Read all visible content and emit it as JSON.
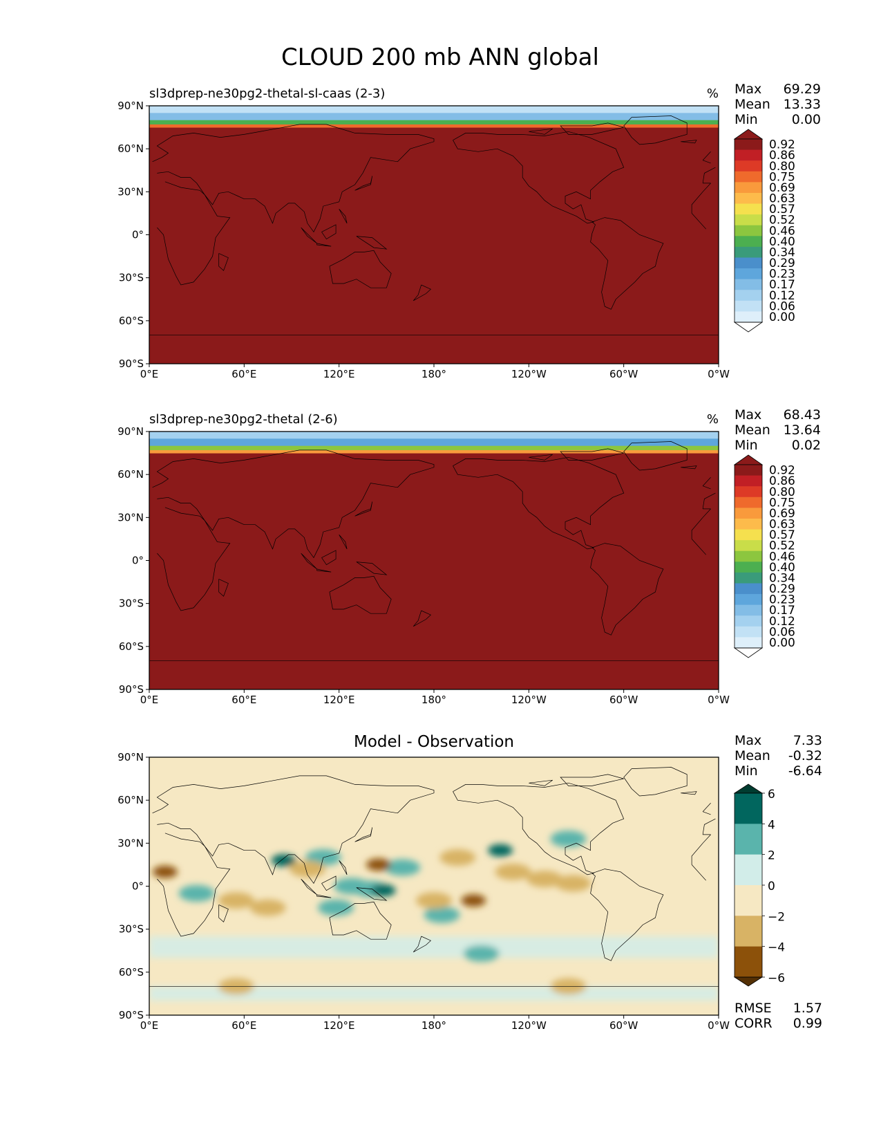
{
  "figure": {
    "title": "CLOUD 200 mb ANN global"
  },
  "chart_data": [
    {
      "type": "heatmap",
      "title": "sl3dprep-ne30pg2-thetal-sl-caas (2-3)",
      "units": "%",
      "stats": {
        "max_label": "Max",
        "max": "69.29",
        "mean_label": "Mean",
        "mean": "13.33",
        "min_label": "Min",
        "min": "0.00"
      },
      "x_ticks": [
        "0°E",
        "60°E",
        "120°E",
        "180°",
        "120°W",
        "60°W",
        "0°W"
      ],
      "y_ticks": [
        "90°N",
        "60°N",
        "30°N",
        "0°",
        "30°S",
        "60°S",
        "90°S"
      ],
      "xlim": [
        0,
        360
      ],
      "ylim": [
        -90,
        90
      ],
      "colorbar": {
        "levels": [
          "0.00",
          "0.06",
          "0.12",
          "0.17",
          "0.23",
          "0.29",
          "0.34",
          "0.40",
          "0.46",
          "0.52",
          "0.57",
          "0.63",
          "0.69",
          "0.75",
          "0.80",
          "0.86",
          "0.92"
        ],
        "colors": [
          "#ffffff",
          "#deeffa",
          "#c2e1f5",
          "#a4d1ef",
          "#83bde6",
          "#5ea6dc",
          "#4a8fcb",
          "#3a9b7a",
          "#4caf50",
          "#8cc63f",
          "#c9dd49",
          "#f5e04e",
          "#fdbb4b",
          "#f99a3c",
          "#ef6a2c",
          "#dd3a26",
          "#c11f25",
          "#8b1a1a"
        ]
      },
      "field": {
        "bulk_value": 0.92,
        "arctic_profile": [
          {
            "lat": 90,
            "value": 0.06
          },
          {
            "lat": 85,
            "value": 0.2
          },
          {
            "lat": 80,
            "value": 0.4
          },
          {
            "lat": 77,
            "value": 0.75
          },
          {
            "lat": 75,
            "value": 0.92
          }
        ]
      }
    },
    {
      "type": "heatmap",
      "title": "sl3dprep-ne30pg2-thetal (2-6)",
      "units": "%",
      "stats": {
        "max_label": "Max",
        "max": "68.43",
        "mean_label": "Mean",
        "mean": "13.64",
        "min_label": "Min",
        "min": "0.02"
      },
      "x_ticks": [
        "0°E",
        "60°E",
        "120°E",
        "180°",
        "120°W",
        "60°W",
        "0°W"
      ],
      "y_ticks": [
        "90°N",
        "60°N",
        "30°N",
        "0°",
        "30°S",
        "60°S",
        "90°S"
      ],
      "xlim": [
        0,
        360
      ],
      "ylim": [
        -90,
        90
      ],
      "colorbar": {
        "levels": [
          "0.00",
          "0.06",
          "0.12",
          "0.17",
          "0.23",
          "0.29",
          "0.34",
          "0.40",
          "0.46",
          "0.52",
          "0.57",
          "0.63",
          "0.69",
          "0.75",
          "0.80",
          "0.86",
          "0.92"
        ],
        "colors": [
          "#ffffff",
          "#deeffa",
          "#c2e1f5",
          "#a4d1ef",
          "#83bde6",
          "#5ea6dc",
          "#4a8fcb",
          "#3a9b7a",
          "#4caf50",
          "#8cc63f",
          "#c9dd49",
          "#f5e04e",
          "#fdbb4b",
          "#f99a3c",
          "#ef6a2c",
          "#dd3a26",
          "#c11f25",
          "#8b1a1a"
        ]
      },
      "field": {
        "bulk_value": 0.92,
        "arctic_profile": [
          {
            "lat": 90,
            "value": 0.12
          },
          {
            "lat": 85,
            "value": 0.23
          },
          {
            "lat": 80,
            "value": 0.46
          },
          {
            "lat": 77,
            "value": 0.69
          },
          {
            "lat": 75,
            "value": 0.92
          }
        ]
      }
    },
    {
      "type": "heatmap",
      "title": "Model - Observation",
      "stats": {
        "max_label": "Max",
        "max": "7.33",
        "mean_label": "Mean",
        "mean": "-0.32",
        "min_label": "Min",
        "min": "-6.64"
      },
      "metrics": {
        "rmse_label": "RMSE",
        "rmse": "1.57",
        "corr_label": "CORR",
        "corr": "0.99"
      },
      "x_ticks": [
        "0°E",
        "60°E",
        "120°E",
        "180°",
        "120°W",
        "60°W",
        "0°W"
      ],
      "y_ticks": [
        "90°N",
        "60°N",
        "30°N",
        "0°",
        "30°S",
        "60°S",
        "90°S"
      ],
      "xlim": [
        0,
        360
      ],
      "ylim": [
        -90,
        90
      ],
      "colorbar": {
        "levels": [
          "6",
          "4",
          "2",
          "0",
          "−2",
          "−4",
          "−6"
        ],
        "level_values": [
          6,
          4,
          2,
          0,
          -2,
          -4,
          -6
        ],
        "colors": [
          "#003c30",
          "#01665e",
          "#5ab4ac",
          "#d2ede9",
          "#f6e8c3",
          "#d8b365",
          "#8c510a",
          "#543005"
        ]
      },
      "anomalies": [
        {
          "lon": 85,
          "lat": 18,
          "value": 5
        },
        {
          "lon": 110,
          "lat": 20,
          "value": 3
        },
        {
          "lon": 30,
          "lat": -5,
          "value": 3
        },
        {
          "lon": 128,
          "lat": 0,
          "value": 3
        },
        {
          "lon": 140,
          "lat": -2,
          "value": 3
        },
        {
          "lon": 148,
          "lat": -3,
          "value": 5
        },
        {
          "lon": 118,
          "lat": -15,
          "value": 3
        },
        {
          "lon": 210,
          "lat": -47,
          "value": 3
        },
        {
          "lon": 222,
          "lat": 25,
          "value": 5
        },
        {
          "lon": 265,
          "lat": 33,
          "value": 3
        },
        {
          "lon": 185,
          "lat": -20,
          "value": 3
        },
        {
          "lon": 160,
          "lat": 13,
          "value": 3
        },
        {
          "lon": 10,
          "lat": 10,
          "value": -5
        },
        {
          "lon": 55,
          "lat": -10,
          "value": -3
        },
        {
          "lon": 75,
          "lat": -15,
          "value": -3
        },
        {
          "lon": 145,
          "lat": 15,
          "value": -5
        },
        {
          "lon": 195,
          "lat": 20,
          "value": -3
        },
        {
          "lon": 230,
          "lat": 10,
          "value": -3
        },
        {
          "lon": 180,
          "lat": -10,
          "value": -3
        },
        {
          "lon": 205,
          "lat": -10,
          "value": -5
        },
        {
          "lon": 250,
          "lat": 5,
          "value": -3
        },
        {
          "lon": 268,
          "lat": 2,
          "value": -3
        },
        {
          "lon": 100,
          "lat": 12,
          "value": -3
        },
        {
          "lon": 265,
          "lat": -70,
          "value": -3
        },
        {
          "lon": 55,
          "lat": -70,
          "value": -3
        }
      ]
    }
  ]
}
